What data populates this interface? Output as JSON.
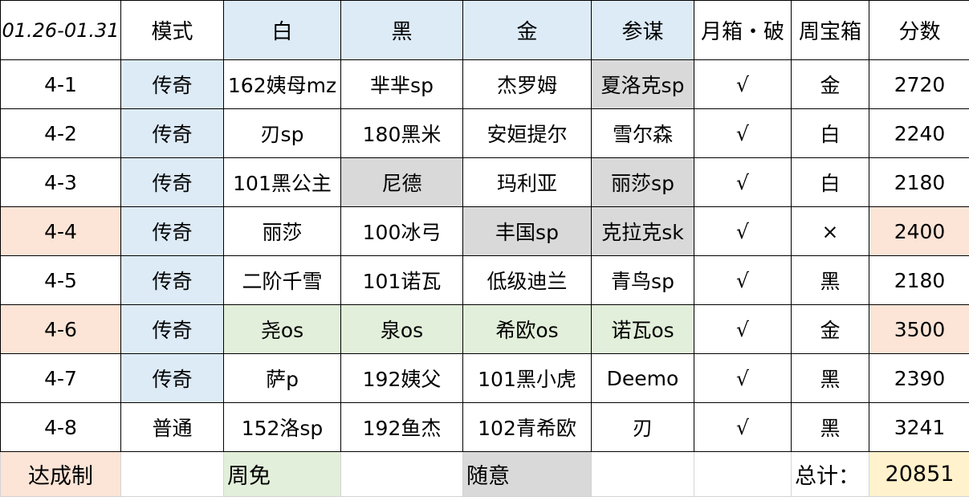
{
  "colors": {
    "blue": "#DDEBF7",
    "gray": "#D9D9D9",
    "peach": "#FCE4D6",
    "green": "#E2EFDA",
    "yellow": "#FFF2CC"
  },
  "header": [
    "01.26-01.31",
    "模式",
    "白",
    "黑",
    "金",
    "参谋",
    "月箱・破",
    "周宝箱",
    "分数"
  ],
  "header_bg": [
    "",
    "",
    "blue",
    "blue",
    "blue",
    "blue",
    "",
    "",
    ""
  ],
  "rows": [
    {
      "cells": [
        "4-1",
        "传奇",
        "162姨母mz",
        "芈芈sp",
        "杰罗姆",
        "夏洛克sp",
        "√",
        "金",
        "2720"
      ],
      "bg": [
        "",
        "blue",
        "",
        "",
        "",
        "gray",
        "",
        "",
        ""
      ]
    },
    {
      "cells": [
        "4-2",
        "传奇",
        "刃sp",
        "180黑米",
        "安姮提尔",
        "雪尔森",
        "√",
        "白",
        "2240"
      ],
      "bg": [
        "",
        "blue",
        "",
        "",
        "",
        "",
        "",
        "",
        ""
      ]
    },
    {
      "cells": [
        "4-3",
        "传奇",
        "101黑公主",
        "尼德",
        "玛利亚",
        "丽莎sp",
        "√",
        "白",
        "2180"
      ],
      "bg": [
        "",
        "blue",
        "",
        "gray",
        "",
        "gray",
        "",
        "",
        ""
      ]
    },
    {
      "cells": [
        "4-4",
        "传奇",
        "丽莎",
        "100冰弓",
        "丰国sp",
        "克拉克sk",
        "√",
        "×",
        "2400"
      ],
      "bg": [
        "peach",
        "blue",
        "",
        "",
        "gray",
        "gray",
        "",
        "",
        "peach"
      ]
    },
    {
      "cells": [
        "4-5",
        "传奇",
        "二阶千雪",
        "101诺瓦",
        "低级迪兰",
        "青鸟sp",
        "√",
        "黑",
        "2180"
      ],
      "bg": [
        "",
        "blue",
        "",
        "",
        "",
        "",
        "",
        "",
        ""
      ]
    },
    {
      "cells": [
        "4-6",
        "传奇",
        "尧os",
        "泉os",
        "希欧os",
        "诺瓦os",
        "√",
        "金",
        "3500"
      ],
      "bg": [
        "peach",
        "blue",
        "green",
        "green",
        "green",
        "green",
        "",
        "",
        "peach"
      ]
    },
    {
      "cells": [
        "4-7",
        "传奇",
        "萨p",
        "192姨父",
        "101黑小虎",
        "Deemo",
        "√",
        "黑",
        "2390"
      ],
      "bg": [
        "",
        "blue",
        "",
        "",
        "",
        "",
        "",
        "",
        ""
      ]
    },
    {
      "cells": [
        "4-8",
        "普通",
        "152洛sp",
        "192鱼杰",
        "102青希欧",
        "刃",
        "√",
        "黑",
        "3241"
      ],
      "bg": [
        "",
        "",
        "",
        "",
        "",
        "",
        "",
        "",
        ""
      ]
    }
  ],
  "footer": {
    "achievement": "达成制",
    "weekly_free": "周免",
    "any": "随意",
    "total_label": "总计：",
    "total": "20851"
  }
}
